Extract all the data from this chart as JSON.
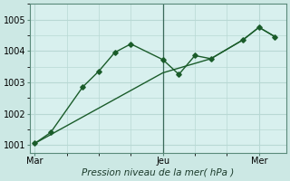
{
  "bg_color": "#cce8e4",
  "plot_bg_color": "#d8f0ee",
  "grid_color": "#b8d8d4",
  "line_color": "#1a5c2a",
  "vline_color": "#3a6a5a",
  "xlabel": "Pression niveau de la mer( hPa )",
  "ylim": [
    1000.75,
    1005.5
  ],
  "yticks": [
    1001,
    1002,
    1003,
    1004,
    1005
  ],
  "x_ticks_labels": [
    "Mar",
    "Jeu",
    "Mer"
  ],
  "x_ticks_pos": [
    0,
    8,
    14
  ],
  "xlim": [
    -0.3,
    15.7
  ],
  "line1_x": [
    0,
    1,
    3,
    4,
    5,
    6,
    8,
    9,
    10,
    11,
    13,
    14,
    15
  ],
  "line1_y": [
    1001.05,
    1001.4,
    1002.85,
    1003.35,
    1003.95,
    1004.22,
    1003.72,
    1003.25,
    1003.85,
    1003.75,
    1004.35,
    1004.75,
    1004.45
  ],
  "line2_x": [
    0,
    8,
    11,
    13,
    14,
    15
  ],
  "line2_y": [
    1001.05,
    1003.3,
    1003.75,
    1004.35,
    1004.75,
    1004.45
  ],
  "vline_x": 8,
  "xlabel_fontsize": 7.5,
  "tick_fontsize": 7
}
